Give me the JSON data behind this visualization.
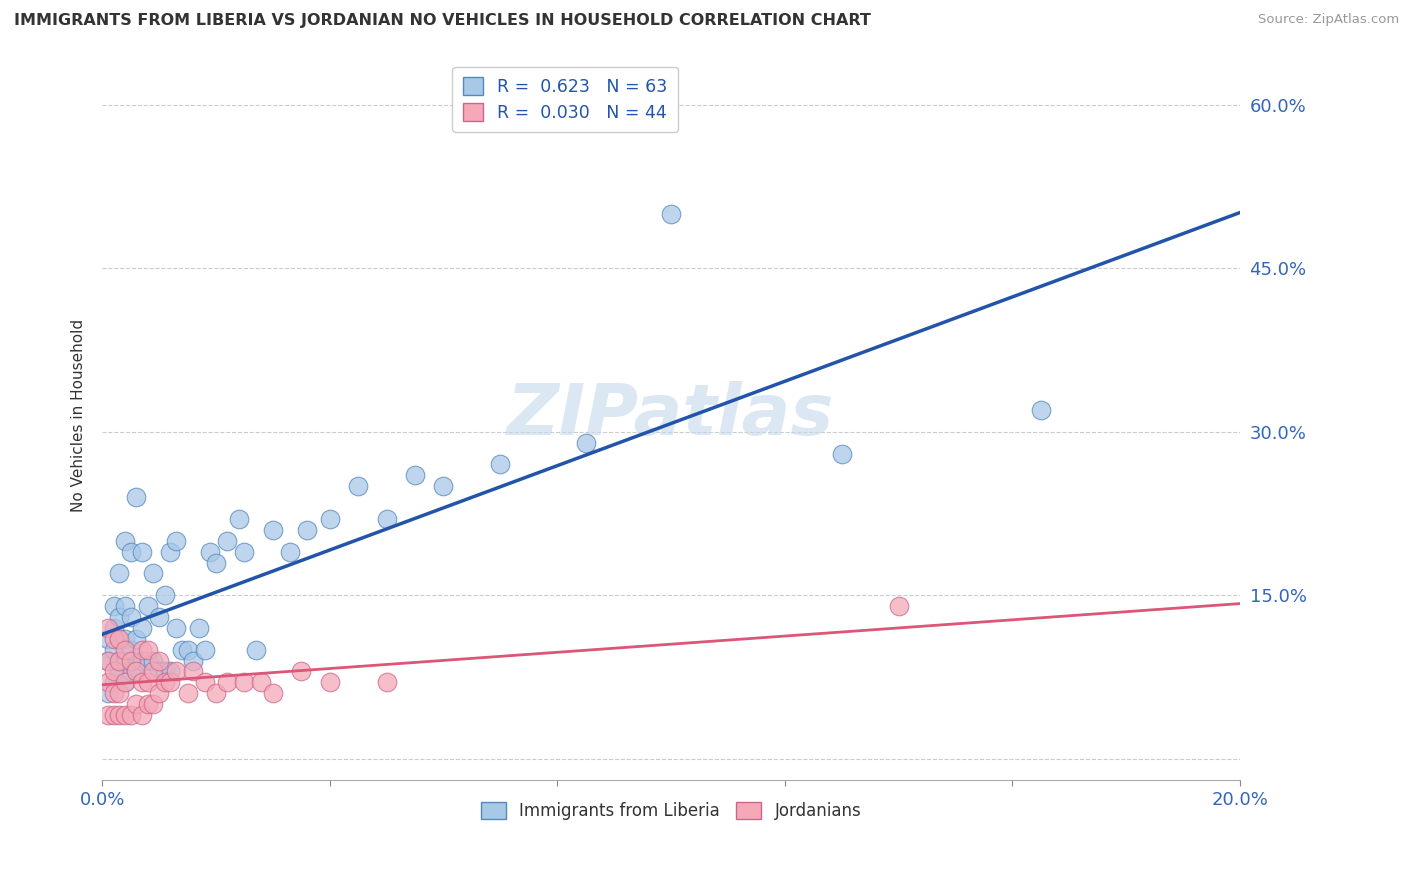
{
  "title": "IMMIGRANTS FROM LIBERIA VS JORDANIAN NO VEHICLES IN HOUSEHOLD CORRELATION CHART",
  "source": "Source: ZipAtlas.com",
  "ylabel": "No Vehicles in Household",
  "xlim": [
    0.0,
    0.2
  ],
  "ylim": [
    -0.02,
    0.65
  ],
  "x_ticks": [
    0.0,
    0.04,
    0.08,
    0.12,
    0.16,
    0.2
  ],
  "x_tick_labels": [
    "0.0%",
    "",
    "",
    "",
    "",
    "20.0%"
  ],
  "y_ticks": [
    0.0,
    0.15,
    0.3,
    0.45,
    0.6
  ],
  "y_tick_labels_right": [
    "",
    "15.0%",
    "30.0%",
    "45.0%",
    "60.0%"
  ],
  "blue_marker_color": "#a8c8e8",
  "blue_edge_color": "#5588bb",
  "pink_marker_color": "#f4a8b8",
  "pink_edge_color": "#cc6688",
  "blue_line_color": "#2255aa",
  "pink_line_color": "#dd5577",
  "R_blue": 0.623,
  "N_blue": 63,
  "R_pink": 0.03,
  "N_pink": 44,
  "watermark": "ZIPatlas",
  "legend_label_blue": "Immigrants from Liberia",
  "legend_label_pink": "Jordanians",
  "blue_scatter_x": [
    0.001,
    0.001,
    0.001,
    0.002,
    0.002,
    0.002,
    0.002,
    0.003,
    0.003,
    0.003,
    0.003,
    0.003,
    0.004,
    0.004,
    0.004,
    0.004,
    0.004,
    0.005,
    0.005,
    0.005,
    0.005,
    0.006,
    0.006,
    0.006,
    0.007,
    0.007,
    0.007,
    0.008,
    0.008,
    0.009,
    0.009,
    0.01,
    0.01,
    0.011,
    0.011,
    0.012,
    0.012,
    0.013,
    0.013,
    0.014,
    0.015,
    0.016,
    0.017,
    0.018,
    0.019,
    0.02,
    0.022,
    0.024,
    0.025,
    0.027,
    0.03,
    0.033,
    0.036,
    0.04,
    0.045,
    0.05,
    0.055,
    0.06,
    0.07,
    0.085,
    0.1,
    0.13,
    0.165
  ],
  "blue_scatter_y": [
    0.06,
    0.09,
    0.11,
    0.07,
    0.1,
    0.12,
    0.14,
    0.08,
    0.09,
    0.11,
    0.13,
    0.17,
    0.07,
    0.09,
    0.11,
    0.14,
    0.2,
    0.08,
    0.1,
    0.13,
    0.19,
    0.08,
    0.11,
    0.24,
    0.09,
    0.12,
    0.19,
    0.09,
    0.14,
    0.09,
    0.17,
    0.08,
    0.13,
    0.08,
    0.15,
    0.08,
    0.19,
    0.12,
    0.2,
    0.1,
    0.1,
    0.09,
    0.12,
    0.1,
    0.19,
    0.18,
    0.2,
    0.22,
    0.19,
    0.1,
    0.21,
    0.19,
    0.21,
    0.22,
    0.25,
    0.22,
    0.26,
    0.25,
    0.27,
    0.29,
    0.5,
    0.28,
    0.32
  ],
  "pink_scatter_x": [
    0.001,
    0.001,
    0.001,
    0.001,
    0.002,
    0.002,
    0.002,
    0.002,
    0.003,
    0.003,
    0.003,
    0.003,
    0.004,
    0.004,
    0.004,
    0.005,
    0.005,
    0.006,
    0.006,
    0.007,
    0.007,
    0.007,
    0.008,
    0.008,
    0.008,
    0.009,
    0.009,
    0.01,
    0.01,
    0.011,
    0.012,
    0.013,
    0.015,
    0.016,
    0.018,
    0.02,
    0.022,
    0.025,
    0.028,
    0.03,
    0.035,
    0.04,
    0.05,
    0.14
  ],
  "pink_scatter_y": [
    0.04,
    0.07,
    0.09,
    0.12,
    0.04,
    0.06,
    0.08,
    0.11,
    0.04,
    0.06,
    0.09,
    0.11,
    0.04,
    0.07,
    0.1,
    0.04,
    0.09,
    0.05,
    0.08,
    0.04,
    0.07,
    0.1,
    0.05,
    0.07,
    0.1,
    0.05,
    0.08,
    0.06,
    0.09,
    0.07,
    0.07,
    0.08,
    0.06,
    0.08,
    0.07,
    0.06,
    0.07,
    0.07,
    0.07,
    0.06,
    0.08,
    0.07,
    0.07,
    0.14
  ]
}
